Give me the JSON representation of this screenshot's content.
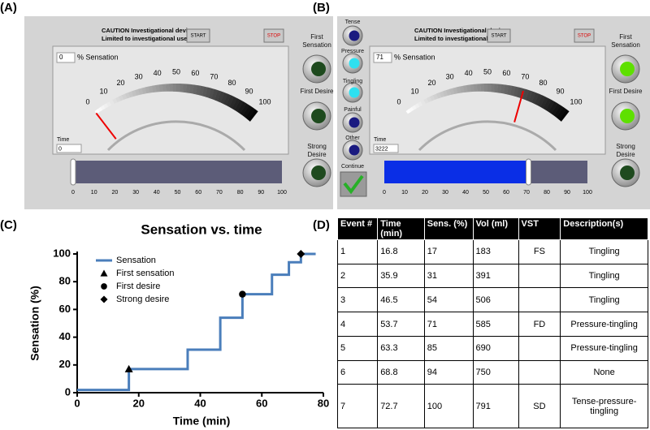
{
  "panel_labels": [
    "(A)",
    "(B)",
    "(C)",
    "(D)"
  ],
  "ui_panels": [
    {
      "caution": [
        "CAUTION Investigational device.",
        "Limited to investigational use."
      ],
      "start": "START",
      "stop": "STOP",
      "gauge_unit": "% Sensation",
      "gauge_value": 0,
      "gauge_lim": [
        0,
        100
      ],
      "gauge_ticks": [
        0,
        10,
        20,
        30,
        40,
        50,
        60,
        70,
        80,
        90,
        100
      ],
      "time_label": "Time",
      "time_value": 0,
      "slider_lim": [
        0,
        100
      ],
      "slider_ticks": [
        0,
        10,
        20,
        30,
        40,
        50,
        60,
        70,
        80,
        90,
        100
      ],
      "indicators": [
        {
          "label": "First Sensation",
          "on": false
        },
        {
          "label": "First Desire",
          "on": false
        },
        {
          "label": "Strong Desire",
          "on": false
        }
      ]
    },
    {
      "caution": [
        "CAUTION Investigational device.",
        "Limited to investigational use."
      ],
      "start": "START",
      "stop": "STOP",
      "gauge_unit": "% Sensation",
      "gauge_value": 71,
      "gauge_lim": [
        0,
        100
      ],
      "gauge_ticks": [
        0,
        10,
        20,
        30,
        40,
        50,
        60,
        70,
        80,
        90,
        100
      ],
      "time_label": "Time",
      "time_value": 3222,
      "slider_lim": [
        0,
        100
      ],
      "slider_ticks": [
        0,
        10,
        20,
        30,
        40,
        50,
        60,
        70,
        80,
        90,
        100
      ],
      "indicators": [
        {
          "label": "First Sensation",
          "on": true
        },
        {
          "label": "First Desire",
          "on": true
        },
        {
          "label": "Strong Desire",
          "on": false
        }
      ],
      "sensation_buttons": [
        {
          "label": "Tense",
          "on": false
        },
        {
          "label": "Pressure",
          "on": true
        },
        {
          "label": "Tingling",
          "on": true
        },
        {
          "label": "Painful",
          "on": false
        },
        {
          "label": "Other",
          "on": false
        }
      ],
      "continue_label": "Continue"
    }
  ],
  "chart_data": {
    "type": "line",
    "title": "Sensation vs. time",
    "x_label": "Time (min)",
    "y_label": "Sensation (%)",
    "xlim": [
      0,
      80
    ],
    "xticks": [
      0,
      20,
      40,
      60,
      80
    ],
    "ylim": [
      0,
      100
    ],
    "yticks": [
      0,
      20,
      40,
      60,
      80,
      100
    ],
    "legend": "upper left",
    "series": [
      {
        "name": "Sensation",
        "color": "#4a7ebb",
        "style": "step",
        "x": [
          0,
          16.8,
          16.8,
          35.9,
          35.9,
          46.5,
          46.5,
          53.7,
          53.7,
          63.3,
          63.3,
          68.8,
          68.8,
          72.7,
          72.7,
          77.5
        ],
        "values": [
          2,
          2,
          17,
          17,
          31,
          31,
          54,
          54,
          71,
          71,
          85,
          85,
          94,
          94,
          100,
          100
        ]
      },
      {
        "name": "First sensation",
        "color": "#000000",
        "marker": "triangle",
        "x": [
          16.8
        ],
        "values": [
          17
        ]
      },
      {
        "name": "First desire",
        "color": "#000000",
        "marker": "circle",
        "x": [
          53.7
        ],
        "values": [
          71
        ]
      },
      {
        "name": "Strong desire",
        "color": "#000000",
        "marker": "diamond",
        "x": [
          72.7
        ],
        "values": [
          100
        ]
      }
    ]
  },
  "table": {
    "header": [
      "Event #",
      "Time (min)",
      "Sens. (%)",
      "Vol (ml)",
      "VST",
      "Description(s)"
    ],
    "rows": [
      [
        1,
        16.8,
        17,
        183,
        "FS",
        "Tingling"
      ],
      [
        2,
        35.9,
        31,
        391,
        null,
        "Tingling"
      ],
      [
        3,
        46.5,
        54,
        506,
        null,
        "Tingling"
      ],
      [
        4,
        53.7,
        71,
        585,
        "FD",
        "Pressure-tingling"
      ],
      [
        5,
        63.3,
        85,
        690,
        null,
        "Pressure-tingling"
      ],
      [
        6,
        68.8,
        94,
        750,
        null,
        "None"
      ],
      [
        7,
        72.7,
        100,
        791,
        "SD",
        "Tense-pressure-tingling"
      ]
    ]
  }
}
